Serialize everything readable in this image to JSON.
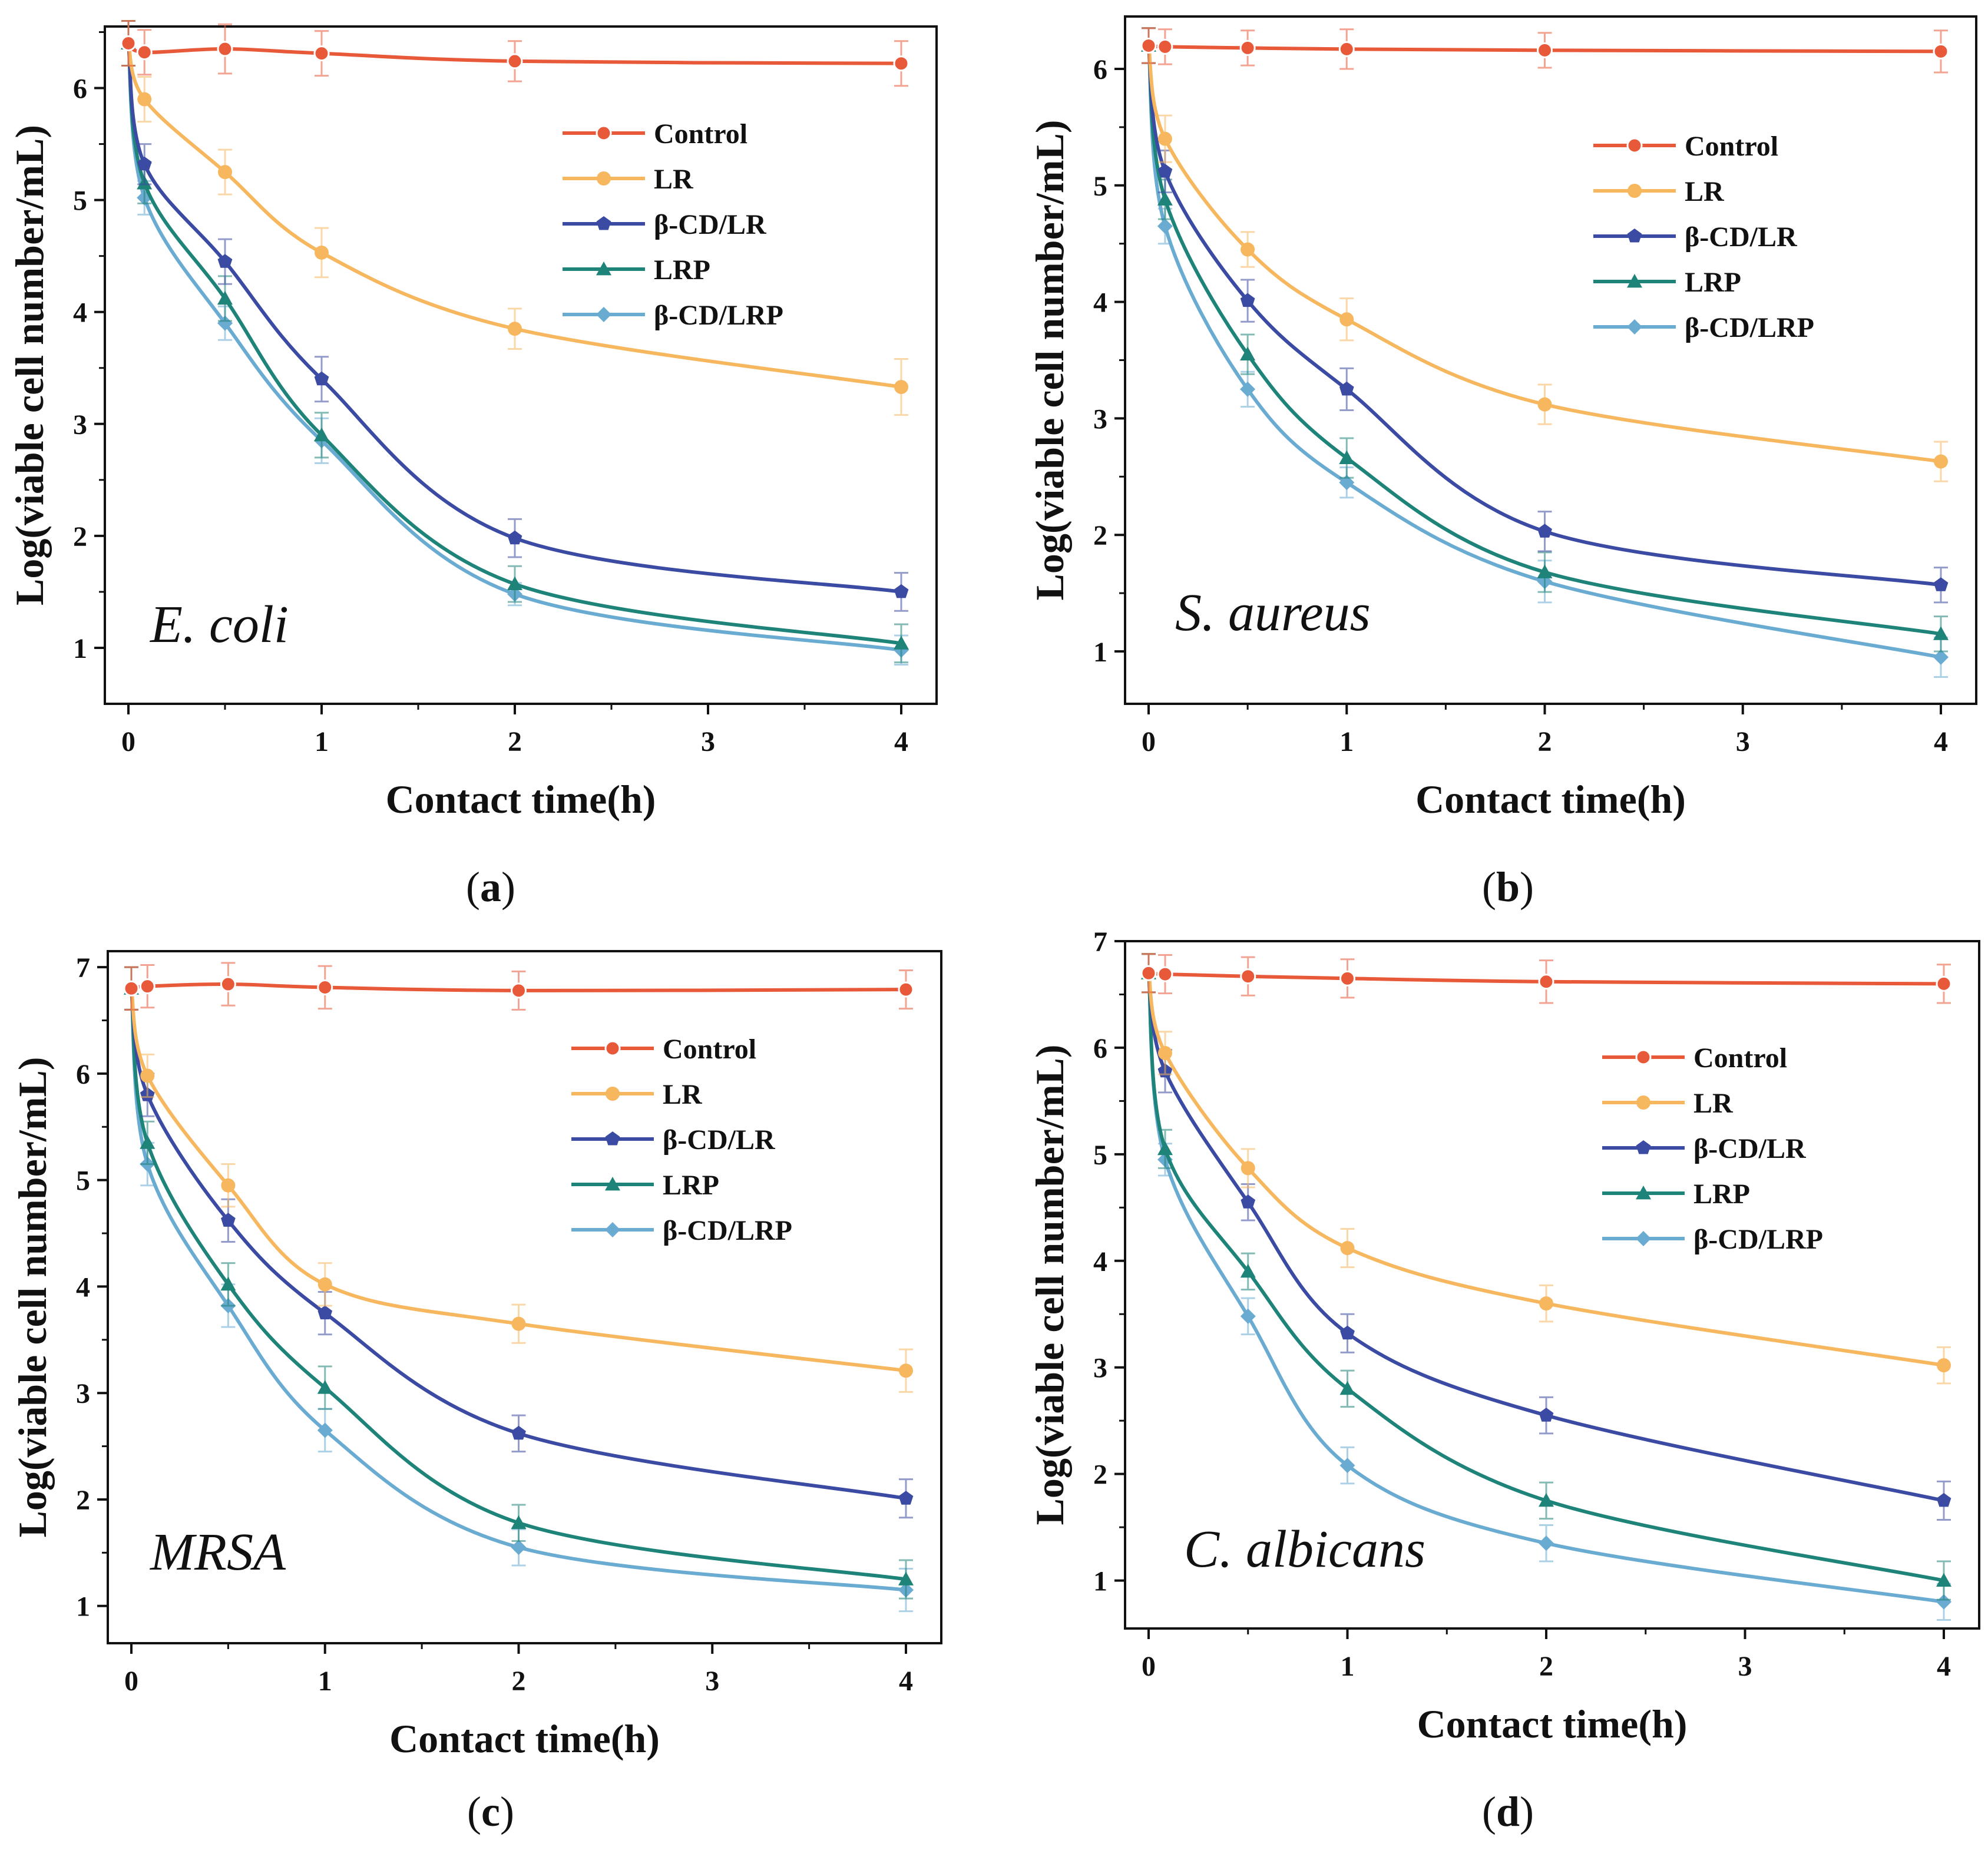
{
  "colors": {
    "Control": "#e8593a",
    "LR": "#f6b75e",
    "β-CD/LR": "#3b4aa2",
    "LRP": "#1e8378",
    "β-CD/LRP": "#6aabd2"
  },
  "markers": {
    "Control": "circle",
    "LR": "circle",
    "β-CD/LR": "pentagon",
    "LRP": "triangle",
    "β-CD/LRP": "diamond"
  },
  "chart_data": [
    {
      "type": "line",
      "panel_letter": "a",
      "organism": "E. coli",
      "xlabel": "Contact time(h)",
      "ylabel": "Log(viable cell number/mL)",
      "xlim": [
        0,
        4
      ],
      "ylim": [
        0.5,
        6.55
      ],
      "xticks": [
        "0",
        "1",
        "2",
        "3",
        "4"
      ],
      "yticks": [
        "1",
        "2",
        "3",
        "4",
        "5",
        "6"
      ],
      "legend_position": "top-right",
      "series": [
        {
          "name": "Control",
          "x": [
            0,
            0.083,
            0.5,
            1,
            2,
            4
          ],
          "y": [
            6.4,
            6.32,
            6.35,
            6.31,
            6.24,
            6.22
          ],
          "err": [
            0.2,
            0.2,
            0.22,
            0.2,
            0.18,
            0.2
          ]
        },
        {
          "name": "LR",
          "x": [
            0,
            0.083,
            0.5,
            1,
            2,
            4
          ],
          "y": [
            6.4,
            5.9,
            5.25,
            4.53,
            3.85,
            3.33
          ],
          "err": [
            0.2,
            0.2,
            0.2,
            0.22,
            0.18,
            0.25
          ]
        },
        {
          "name": "β-CD/LR",
          "x": [
            0,
            0.083,
            0.5,
            1,
            2,
            4
          ],
          "y": [
            6.4,
            5.32,
            4.45,
            3.4,
            1.98,
            1.5
          ],
          "err": [
            0.2,
            0.18,
            0.2,
            0.2,
            0.17,
            0.17
          ]
        },
        {
          "name": "LRP",
          "x": [
            0,
            0.083,
            0.5,
            1,
            2,
            4
          ],
          "y": [
            6.4,
            5.15,
            4.12,
            2.9,
            1.57,
            1.04
          ],
          "err": [
            0.2,
            0.18,
            0.2,
            0.2,
            0.16,
            0.17
          ]
        },
        {
          "name": "β-CD/LRP",
          "x": [
            0,
            0.083,
            0.5,
            1,
            2,
            4
          ],
          "y": [
            6.4,
            5.02,
            3.9,
            2.85,
            1.48,
            0.98
          ],
          "err": [
            0.2,
            0.15,
            0.15,
            0.2,
            0.1,
            0.13
          ]
        }
      ]
    },
    {
      "type": "line",
      "panel_letter": "b",
      "organism": "S. aureus",
      "xlabel": "Contact time(h)",
      "ylabel": "Log(viable cell number/mL)",
      "xlim": [
        0,
        4
      ],
      "ylim": [
        0.55,
        6.45
      ],
      "xticks": [
        "0",
        "1",
        "2",
        "3",
        "4"
      ],
      "yticks": [
        "1",
        "2",
        "3",
        "4",
        "5",
        "6"
      ],
      "legend_position": "top-right",
      "series": [
        {
          "name": "Control",
          "x": [
            0,
            0.083,
            0.5,
            1,
            2,
            4
          ],
          "y": [
            6.2,
            6.19,
            6.18,
            6.17,
            6.16,
            6.15
          ],
          "err": [
            0.15,
            0.15,
            0.15,
            0.17,
            0.15,
            0.18
          ]
        },
        {
          "name": "LR",
          "x": [
            0,
            0.083,
            0.5,
            1,
            2,
            4
          ],
          "y": [
            6.2,
            5.4,
            4.45,
            3.85,
            3.12,
            2.63
          ],
          "err": [
            0.15,
            0.2,
            0.15,
            0.18,
            0.17,
            0.17
          ]
        },
        {
          "name": "β-CD/LR",
          "x": [
            0,
            0.083,
            0.5,
            1,
            2,
            4
          ],
          "y": [
            6.2,
            5.12,
            4.01,
            3.25,
            2.03,
            1.57
          ],
          "err": [
            0.15,
            0.18,
            0.18,
            0.18,
            0.17,
            0.15
          ]
        },
        {
          "name": "LRP",
          "x": [
            0,
            0.083,
            0.5,
            1,
            2,
            4
          ],
          "y": [
            6.2,
            4.88,
            3.55,
            2.66,
            1.68,
            1.15
          ],
          "err": [
            0.15,
            0.17,
            0.17,
            0.17,
            0.17,
            0.15
          ]
        },
        {
          "name": "β-CD/LRP",
          "x": [
            0,
            0.083,
            0.5,
            1,
            2,
            4
          ],
          "y": [
            6.2,
            4.65,
            3.25,
            2.45,
            1.6,
            0.95
          ],
          "err": [
            0.15,
            0.15,
            0.15,
            0.13,
            0.18,
            0.17
          ]
        }
      ]
    },
    {
      "type": "line",
      "panel_letter": "c",
      "organism": "MRSA",
      "xlabel": "Contact time(h)",
      "ylabel": "Log(viable cell number/mL)",
      "xlim": [
        0,
        4
      ],
      "ylim": [
        0.65,
        7.15
      ],
      "xticks": [
        "0",
        "1",
        "2",
        "3",
        "4"
      ],
      "yticks": [
        "1",
        "2",
        "3",
        "4",
        "5",
        "6",
        "7"
      ],
      "legend_position": "top-right",
      "series": [
        {
          "name": "Control",
          "x": [
            0,
            0.083,
            0.5,
            1,
            2,
            4
          ],
          "y": [
            6.8,
            6.82,
            6.84,
            6.81,
            6.78,
            6.79
          ],
          "err": [
            0.2,
            0.2,
            0.2,
            0.2,
            0.18,
            0.18
          ]
        },
        {
          "name": "LR",
          "x": [
            0,
            0.083,
            0.5,
            1,
            2,
            4
          ],
          "y": [
            6.8,
            5.98,
            4.95,
            4.02,
            3.65,
            3.21
          ],
          "err": [
            0.2,
            0.2,
            0.2,
            0.2,
            0.18,
            0.2
          ]
        },
        {
          "name": "β-CD/LR",
          "x": [
            0,
            0.083,
            0.5,
            1,
            2,
            4
          ],
          "y": [
            6.8,
            5.8,
            4.62,
            3.75,
            2.62,
            2.01
          ],
          "err": [
            0.2,
            0.2,
            0.2,
            0.2,
            0.17,
            0.18
          ]
        },
        {
          "name": "LRP",
          "x": [
            0,
            0.083,
            0.5,
            1,
            2,
            4
          ],
          "y": [
            6.8,
            5.35,
            4.02,
            3.05,
            1.78,
            1.25
          ],
          "err": [
            0.2,
            0.2,
            0.2,
            0.2,
            0.17,
            0.18
          ]
        },
        {
          "name": "β-CD/LRP",
          "x": [
            0,
            0.083,
            0.5,
            1,
            2,
            4
          ],
          "y": [
            6.8,
            5.15,
            3.82,
            2.65,
            1.55,
            1.15
          ],
          "err": [
            0.2,
            0.2,
            0.2,
            0.2,
            0.17,
            0.2
          ]
        }
      ]
    },
    {
      "type": "line",
      "panel_letter": "d",
      "organism": "C. albicans",
      "xlabel": "Contact time(h)",
      "ylabel": "Log(viable cell number/mL)",
      "xlim": [
        0,
        4
      ],
      "ylim": [
        0.55,
        7.0
      ],
      "xticks": [
        "0",
        "1",
        "2",
        "3",
        "4"
      ],
      "yticks": [
        "1",
        "2",
        "3",
        "4",
        "5",
        "6",
        "7"
      ],
      "legend_position": "top-right",
      "series": [
        {
          "name": "Control",
          "x": [
            0,
            0.083,
            0.5,
            1,
            2,
            4
          ],
          "y": [
            6.7,
            6.69,
            6.67,
            6.65,
            6.62,
            6.6
          ],
          "err": [
            0.18,
            0.18,
            0.18,
            0.18,
            0.2,
            0.18
          ]
        },
        {
          "name": "LR",
          "x": [
            0,
            0.083,
            0.5,
            1,
            2,
            4
          ],
          "y": [
            6.7,
            5.95,
            4.87,
            4.12,
            3.6,
            3.02
          ],
          "err": [
            0.18,
            0.2,
            0.18,
            0.18,
            0.17,
            0.17
          ]
        },
        {
          "name": "β-CD/LR",
          "x": [
            0,
            0.083,
            0.5,
            1,
            2,
            4
          ],
          "y": [
            6.7,
            5.78,
            4.55,
            3.32,
            2.55,
            1.75
          ],
          "err": [
            0.18,
            0.2,
            0.17,
            0.18,
            0.17,
            0.18
          ]
        },
        {
          "name": "LRP",
          "x": [
            0,
            0.083,
            0.5,
            1,
            2,
            4
          ],
          "y": [
            6.7,
            5.05,
            3.9,
            2.8,
            1.75,
            1.0
          ],
          "err": [
            0.18,
            0.18,
            0.17,
            0.17,
            0.17,
            0.18
          ]
        },
        {
          "name": "β-CD/LRP",
          "x": [
            0,
            0.083,
            0.5,
            1,
            2,
            4
          ],
          "y": [
            6.7,
            4.95,
            3.48,
            2.08,
            1.35,
            0.8
          ],
          "err": [
            0.18,
            0.15,
            0.17,
            0.17,
            0.17,
            0.17
          ]
        }
      ]
    }
  ]
}
